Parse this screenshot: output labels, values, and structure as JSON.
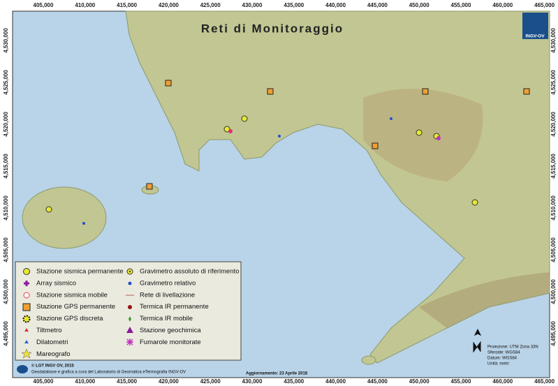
{
  "title": "Reti di Monitoraggio",
  "logo": "INGV-OV",
  "axes": {
    "x_labels": [
      "405,000",
      "410,000",
      "415,000",
      "420,000",
      "425,000",
      "430,000",
      "435,000",
      "440,000",
      "445,000",
      "450,000",
      "455,000",
      "460,000",
      "465,000"
    ],
    "y_labels": [
      "4,530,000",
      "4,525,000",
      "4,520,000",
      "4,515,000",
      "4,510,000",
      "4,505,000",
      "4,500,000",
      "4,495,000"
    ]
  },
  "legend": {
    "left": [
      "Stazione sismica permanente",
      "Array sismico",
      "Stazione sismica mobile",
      "Stazione GPS permanente",
      "Stazione GPS discreta",
      "Tiltmetro",
      "Dilatometri",
      "Mareografo"
    ],
    "right": [
      "Gravimetro assoluto di riferimento",
      "Gravimetro relativo",
      "Rete di livellazione",
      "Termica IR permanente",
      "Termica IR mobile",
      "Stazione geochimica",
      "Fumarole monitorate"
    ]
  },
  "credits": {
    "copyright": "© LGT INGV OV, 2015",
    "note": "Geodatabase e grafica a cura del Laboratorio di Geomatica eTermografia INGV-OV"
  },
  "update": "Aggiornamento: 23 Aprile 2018",
  "projection": [
    "Proiezione: UTM Zona 33N",
    "Sferoide: WGS84",
    "Datum: WGS84",
    "Unità: metri"
  ]
}
